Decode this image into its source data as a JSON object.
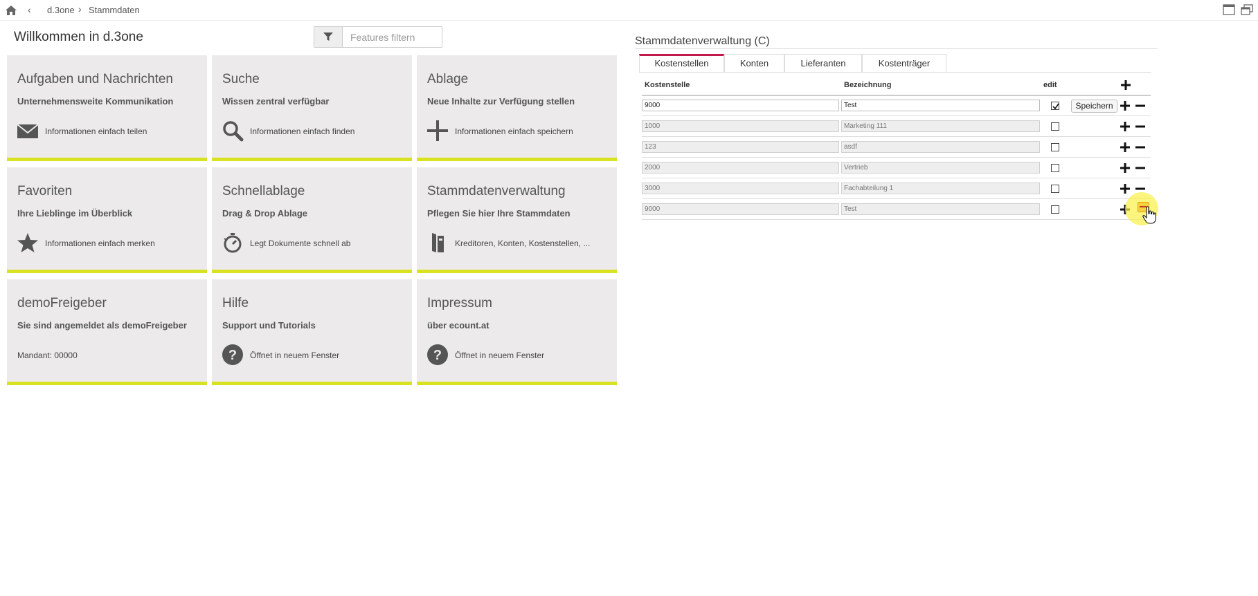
{
  "breadcrumb": {
    "root": "d.3one",
    "current": "Stammdaten"
  },
  "welcome": "Willkommen in d.3one",
  "filter": {
    "placeholder": "Features filtern"
  },
  "tiles": [
    {
      "title": "Aufgaben und Nachrichten",
      "subtitle": "Unternehmensweite Kommunikation",
      "footer": "Informationen einfach teilen",
      "icon": "envelope-icon"
    },
    {
      "title": "Suche",
      "subtitle": "Wissen zentral verfügbar",
      "footer": "Informationen einfach finden",
      "icon": "search-icon"
    },
    {
      "title": "Ablage",
      "subtitle": "Neue Inhalte zur Verfügung stellen",
      "footer": "Informationen einfach speichern",
      "icon": "plus-icon"
    },
    {
      "title": "Favoriten",
      "subtitle": "Ihre Lieblinge im Überblick",
      "footer": "Informationen einfach merken",
      "icon": "star-icon"
    },
    {
      "title": "Schnellablage",
      "subtitle": "Drag & Drop Ablage",
      "footer": "Legt Dokumente schnell ab",
      "icon": "stopwatch-icon"
    },
    {
      "title": "Stammdatenverwaltung",
      "subtitle": "Pflegen Sie hier Ihre Stammdaten",
      "footer": "Kreditoren, Konten, Kostenstellen, ...",
      "icon": "binder-icon"
    },
    {
      "title": "demoFreigeber",
      "subtitle": "Sie sind angemeldet als demoFreigeber",
      "footer": "Mandant: 00000",
      "icon": ""
    },
    {
      "title": "Hilfe",
      "subtitle": "Support und Tutorials",
      "footer": "Öffnet in neuem Fenster",
      "icon": "help-icon"
    },
    {
      "title": "Impressum",
      "subtitle": "über ecount.at",
      "footer": "Öffnet in neuem Fenster",
      "icon": "help-icon"
    }
  ],
  "panel": {
    "title": "Stammdatenverwaltung (C)",
    "tabs": [
      "Kostenstellen",
      "Konten",
      "Lieferanten",
      "Kostenträger"
    ],
    "active_tab": "Kostenstellen",
    "columns": {
      "kostenstelle": "Kostenstelle",
      "bezeichnung": "Bezeichnung",
      "edit": "edit"
    },
    "save_label": "Speichern",
    "rows": [
      {
        "kostenstelle": "9000",
        "bezeichnung": "Test",
        "edit": true
      },
      {
        "kostenstelle": "1000",
        "bezeichnung": "Marketing 111",
        "edit": false
      },
      {
        "kostenstelle": "123",
        "bezeichnung": "asdf",
        "edit": false
      },
      {
        "kostenstelle": "2000",
        "bezeichnung": "Vertrieb",
        "edit": false
      },
      {
        "kostenstelle": "3000",
        "bezeichnung": "Fachabteilung 1",
        "edit": false
      },
      {
        "kostenstelle": "9000",
        "bezeichnung": "Test",
        "edit": false
      }
    ]
  },
  "colors": {
    "accent_bar": "#d8e221",
    "active_tab": "#c0174d",
    "tile_bg": "#eceaea"
  }
}
